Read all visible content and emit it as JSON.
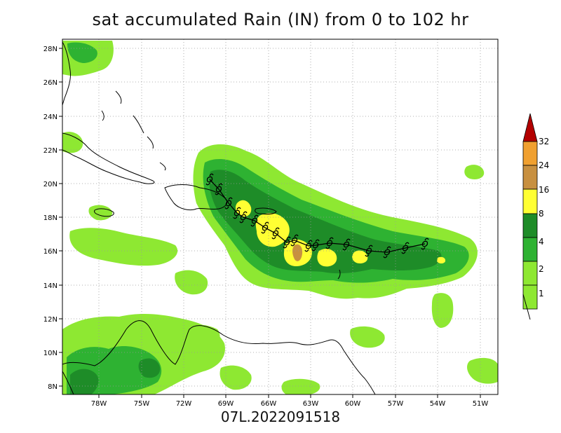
{
  "title": "sat accumulated Rain (IN) from 0 to 102 hr",
  "subtitle": "07L.2022091518",
  "axes": {
    "lat_labels": [
      "28N",
      "26N",
      "24N",
      "22N",
      "20N",
      "18N",
      "16N",
      "14N",
      "12N",
      "10N",
      "8N"
    ],
    "lon_labels": [
      "78W",
      "75W",
      "72W",
      "69W",
      "66W",
      "63W",
      "60W",
      "57W",
      "54W",
      "51W"
    ]
  },
  "colorbar": {
    "labels": [
      "32",
      "24",
      "16",
      "8",
      "4",
      "2",
      "1"
    ],
    "colors": [
      "#b30000",
      "#f0a030",
      "#c89040",
      "#ffff33",
      "#1e8c28",
      "#2eb232",
      "#8ee832"
    ]
  },
  "rain_colors": {
    "light": "#8ee832",
    "mid": "#2eb232",
    "dark": "#1e8c28",
    "yellow": "#ffff33",
    "tan": "#c89040"
  },
  "storm_symbol": "hurricane-symbol-icon"
}
